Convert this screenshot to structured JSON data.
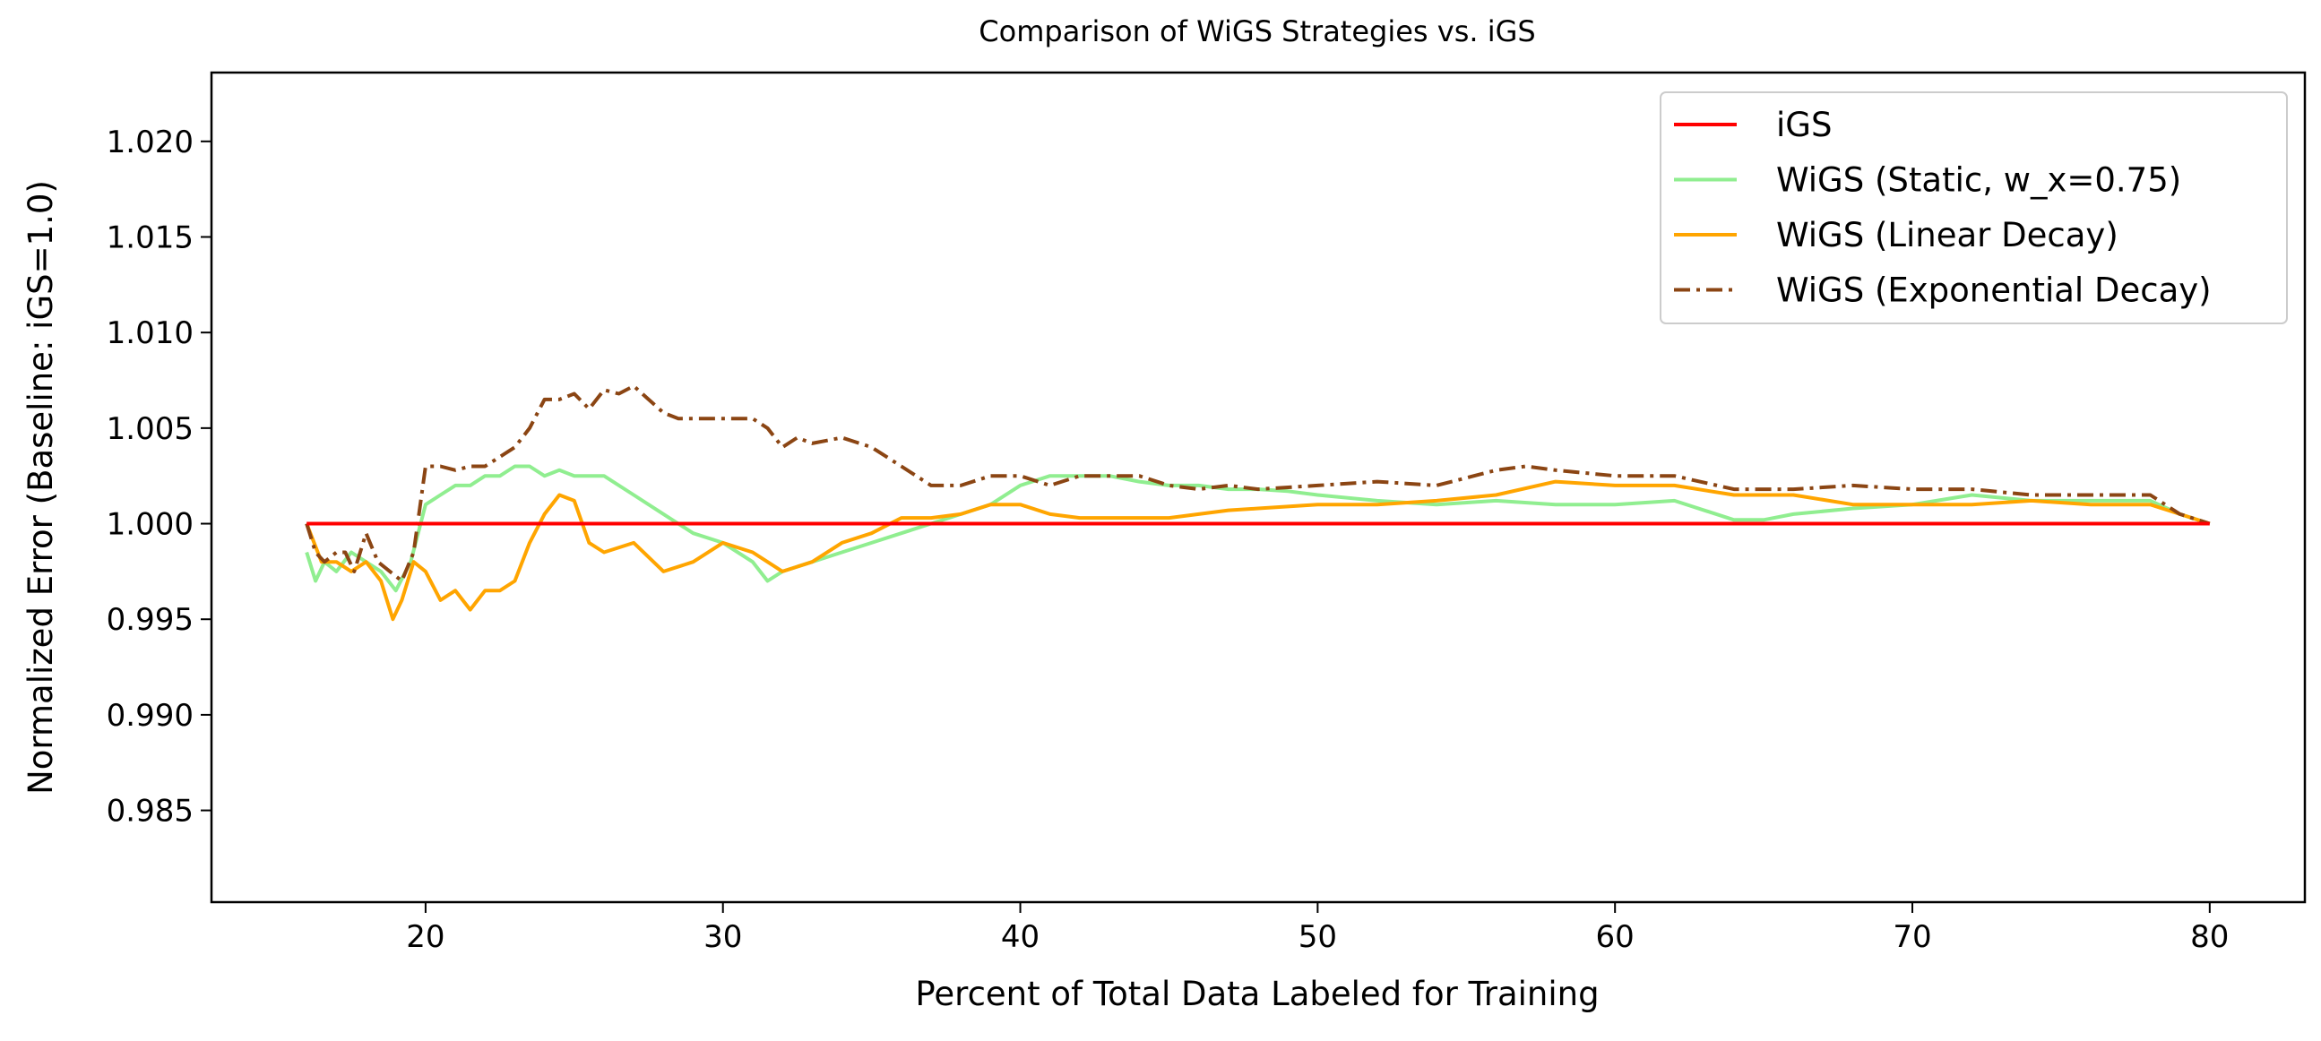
{
  "chart_data": {
    "type": "line",
    "title": "Comparison of WiGS Strategies vs. iGS",
    "xlabel": "Percent of Total Data Labeled for Training",
    "ylabel": "Normalized Error (Baseline: iGS=1.0)",
    "xlim": [
      12.8,
      83.2
    ],
    "ylim": [
      0.9802,
      1.0236
    ],
    "xticks": [
      20,
      30,
      40,
      50,
      60,
      70,
      80
    ],
    "yticks": [
      0.985,
      0.99,
      0.995,
      1.0,
      1.005,
      1.01,
      1.015,
      1.02
    ],
    "ytick_labels": [
      "0.985",
      "0.990",
      "0.995",
      "1.000",
      "1.005",
      "1.010",
      "1.015",
      "1.020"
    ],
    "grid": false,
    "legend_position": "top-right",
    "series": [
      {
        "name": "iGS",
        "color": "#ff0000",
        "style": "solid",
        "x": [
          16,
          80
        ],
        "y": [
          1.0,
          1.0
        ]
      },
      {
        "name": "WiGS (Static, w_x=0.75)",
        "color": "#90ee90",
        "style": "solid",
        "x": [
          16,
          16.3,
          16.6,
          17,
          17.5,
          18,
          18.5,
          19,
          19.5,
          20,
          20.5,
          21,
          21.5,
          22,
          22.5,
          23,
          23.5,
          24,
          24.5,
          25,
          26,
          27,
          28,
          29,
          30,
          31,
          31.5,
          32,
          33,
          34,
          35,
          36,
          37,
          38,
          39,
          40,
          41,
          42,
          43,
          44,
          45,
          46,
          47,
          48,
          49,
          50,
          52,
          54,
          56,
          58,
          60,
          62,
          64,
          65,
          66,
          68,
          70,
          72,
          74,
          76,
          78,
          79,
          80
        ],
        "y": [
          0.9985,
          0.997,
          0.998,
          0.9975,
          0.9985,
          0.998,
          0.9975,
          0.9965,
          0.998,
          1.001,
          1.0015,
          1.002,
          1.002,
          1.0025,
          1.0025,
          1.003,
          1.003,
          1.0025,
          1.0028,
          1.0025,
          1.0025,
          1.0015,
          1.0005,
          0.9995,
          0.999,
          0.998,
          0.997,
          0.9975,
          0.998,
          0.9985,
          0.999,
          0.9995,
          1.0,
          1.0005,
          1.001,
          1.002,
          1.0025,
          1.0025,
          1.0025,
          1.0022,
          1.002,
          1.002,
          1.0018,
          1.0018,
          1.0017,
          1.0015,
          1.0012,
          1.001,
          1.0012,
          1.001,
          1.001,
          1.0012,
          1.0002,
          1.0002,
          1.0005,
          1.0008,
          1.001,
          1.0015,
          1.0012,
          1.0012,
          1.0012,
          1.0005,
          1.0
        ]
      },
      {
        "name": "WiGS (Linear Decay)",
        "color": "#ffa500",
        "style": "solid",
        "x": [
          16,
          16.5,
          17,
          17.5,
          18,
          18.5,
          18.9,
          19.2,
          19.6,
          20,
          20.5,
          21,
          21.5,
          22,
          22.5,
          23,
          23.5,
          24,
          24.5,
          25,
          25.5,
          26,
          27,
          28,
          29,
          30,
          31,
          31.5,
          32,
          33,
          34,
          35,
          36,
          37,
          38,
          39,
          40,
          41,
          42,
          43,
          44,
          45,
          46,
          47,
          48,
          50,
          52,
          54,
          56,
          58,
          60,
          62,
          64,
          66,
          68,
          70,
          72,
          74,
          76,
          78,
          79,
          80
        ],
        "y": [
          1.0,
          0.998,
          0.998,
          0.9975,
          0.998,
          0.997,
          0.995,
          0.996,
          0.998,
          0.9975,
          0.996,
          0.9965,
          0.9955,
          0.9965,
          0.9965,
          0.997,
          0.999,
          1.0005,
          1.0015,
          1.0012,
          0.999,
          0.9985,
          0.999,
          0.9975,
          0.998,
          0.999,
          0.9985,
          0.998,
          0.9975,
          0.998,
          0.999,
          0.9995,
          1.0003,
          1.0003,
          1.0005,
          1.001,
          1.001,
          1.0005,
          1.0003,
          1.0003,
          1.0003,
          1.0003,
          1.0005,
          1.0007,
          1.0008,
          1.001,
          1.001,
          1.0012,
          1.0015,
          1.0022,
          1.002,
          1.002,
          1.0015,
          1.0015,
          1.001,
          1.001,
          1.001,
          1.0012,
          1.001,
          1.001,
          1.0005,
          1.0
        ]
      },
      {
        "name": "WiGS (Exponential Decay)",
        "color": "#8b4513",
        "style": "dashdot",
        "x": [
          16,
          16.3,
          16.6,
          17,
          17.3,
          17.6,
          18,
          18.4,
          18.8,
          19.2,
          19.6,
          20,
          20.5,
          21,
          21.5,
          22,
          22.5,
          23,
          23.5,
          24,
          24.5,
          25,
          25.5,
          26,
          26.5,
          27,
          27.5,
          28,
          28.5,
          29,
          30,
          31,
          31.5,
          32,
          32.5,
          33,
          34,
          35,
          36,
          37,
          38,
          39,
          40,
          41,
          42,
          43,
          44,
          45,
          46,
          47,
          48,
          50,
          52,
          54,
          56,
          57,
          58,
          60,
          62,
          64,
          66,
          68,
          70,
          72,
          74,
          76,
          78,
          79,
          80
        ],
        "y": [
          1.0,
          0.9985,
          0.998,
          0.9985,
          0.9985,
          0.9975,
          0.9995,
          0.998,
          0.9975,
          0.997,
          0.9985,
          1.003,
          1.003,
          1.0028,
          1.003,
          1.003,
          1.0035,
          1.004,
          1.005,
          1.0065,
          1.0065,
          1.0068,
          1.006,
          1.007,
          1.0068,
          1.0072,
          1.0065,
          1.0058,
          1.0055,
          1.0055,
          1.0055,
          1.0055,
          1.005,
          1.004,
          1.0045,
          1.0042,
          1.0045,
          1.004,
          1.003,
          1.002,
          1.002,
          1.0025,
          1.0025,
          1.002,
          1.0025,
          1.0025,
          1.0025,
          1.002,
          1.0018,
          1.002,
          1.0018,
          1.002,
          1.0022,
          1.002,
          1.0028,
          1.003,
          1.0028,
          1.0025,
          1.0025,
          1.0018,
          1.0018,
          1.002,
          1.0018,
          1.0018,
          1.0015,
          1.0015,
          1.0015,
          1.0005,
          1.0
        ]
      }
    ]
  }
}
